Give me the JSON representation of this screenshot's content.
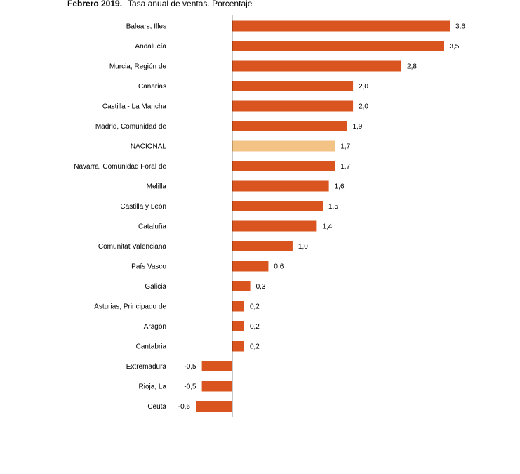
{
  "chart_data": {
    "type": "bar",
    "orientation": "horizontal",
    "title": "Febrero 2019.",
    "subtitle": "Tasa anual de ventas. Porcentaje",
    "categories": [
      "Balears, Illes",
      "Andalucía",
      "Murcia, Región de",
      "Canarias",
      "Castilla - La Mancha",
      "Madrid, Comunidad de",
      "NACIONAL",
      "Navarra, Comunidad Foral de",
      "Melilla",
      "Castilla y León",
      "Cataluña",
      "Comunitat Valenciana",
      "País Vasco",
      "Galicia",
      "Asturias, Principado de",
      "Aragón",
      "Cantabria",
      "Extremadura",
      "Rioja, La",
      "Ceuta"
    ],
    "values": [
      3.6,
      3.5,
      2.8,
      2.0,
      2.0,
      1.9,
      1.7,
      1.7,
      1.6,
      1.5,
      1.4,
      1.0,
      0.6,
      0.3,
      0.2,
      0.2,
      0.2,
      -0.5,
      -0.5,
      -0.6
    ],
    "value_labels": [
      "3,6",
      "3,5",
      "2,8",
      "2,0",
      "2,0",
      "1,9",
      "1,7",
      "1,7",
      "1,6",
      "1,5",
      "1,4",
      "1,0",
      "0,6",
      "0,3",
      "0,2",
      "0,2",
      "0,2",
      "-0,5",
      "-0,5",
      "-0,6"
    ],
    "colors": [
      "#d9541e",
      "#d9541e",
      "#d9541e",
      "#d9541e",
      "#d9541e",
      "#d9541e",
      "#f3c285",
      "#d9541e",
      "#d9541e",
      "#d9541e",
      "#d9541e",
      "#d9541e",
      "#d9541e",
      "#d9541e",
      "#d9541e",
      "#d9541e",
      "#d9541e",
      "#d9541e",
      "#d9541e",
      "#d9541e"
    ]
  }
}
